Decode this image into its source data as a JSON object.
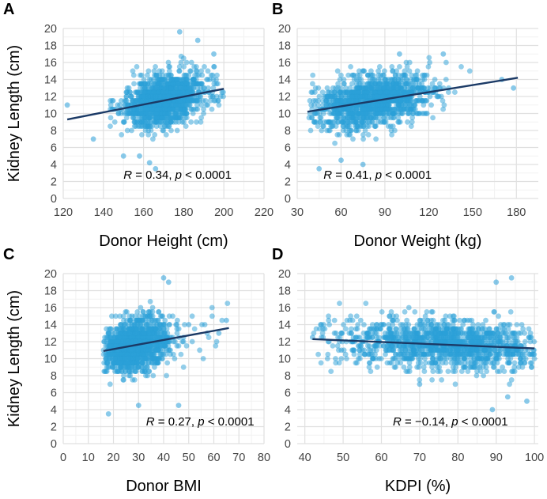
{
  "colors": {
    "point": "#2a9fd8",
    "fit_line": "#1b3a66",
    "grid_major": "#e0e0e0",
    "grid_minor": "#f2f2f2",
    "panel_bg": "#ffffff"
  },
  "chart_data": [
    {
      "id": "A",
      "type": "scatter",
      "panel_label": "A",
      "xlabel": "Donor Height (cm)",
      "ylabel": "Kidney Length (cm)",
      "xlim": [
        120,
        220
      ],
      "ylim": [
        0,
        20
      ],
      "xticks": [
        120,
        140,
        160,
        180,
        200,
        220
      ],
      "xtick_labels": [
        "120",
        "140",
        "160",
        "180",
        "200",
        "220"
      ],
      "yticks": [
        0,
        2,
        4,
        6,
        8,
        10,
        12,
        14,
        16,
        18,
        20
      ],
      "ytick_labels": [
        "0",
        "2",
        "4",
        "6",
        "8",
        "10",
        "12",
        "14",
        "16",
        "18",
        "20"
      ],
      "x_cloud": {
        "min": 140,
        "max": 200,
        "mean": 170,
        "sd": 10
      },
      "fit_line": {
        "x": [
          122,
          200
        ],
        "y": [
          9.3,
          12.9
        ]
      },
      "annotation": {
        "r_symbol": "R",
        "r_text": " = 0.34, ",
        "p_symbol": "p",
        "p_text": " < 0.0001",
        "x": 150,
        "y": 2.8
      },
      "outliers": [
        [
          122,
          11.0
        ],
        [
          178,
          19.6
        ],
        [
          187,
          18.6
        ],
        [
          158,
          5.0
        ],
        [
          163,
          4.2
        ],
        [
          166,
          3.5
        ],
        [
          150,
          5.0
        ],
        [
          135,
          7.0
        ],
        [
          195,
          17.0
        ]
      ]
    },
    {
      "id": "B",
      "type": "scatter",
      "panel_label": "B",
      "xlabel": "Donor Weight (kg)",
      "ylabel": "",
      "xlim": [
        30,
        195
      ],
      "ylim": [
        0,
        20
      ],
      "xticks": [
        30,
        60,
        90,
        120,
        150,
        180
      ],
      "xtick_labels": [
        "30",
        "60",
        "90",
        "120",
        "150",
        "180"
      ],
      "yticks": [
        0,
        2,
        4,
        6,
        8,
        10,
        12,
        14,
        16,
        18,
        20
      ],
      "ytick_labels": [
        "0",
        "2",
        "4",
        "6",
        "8",
        "10",
        "12",
        "14",
        "16",
        "18",
        "20"
      ],
      "x_cloud": {
        "min": 38,
        "max": 165,
        "mean": 82,
        "sd": 20
      },
      "fit_line": {
        "x": [
          37,
          181
        ],
        "y": [
          10.2,
          14.2
        ]
      },
      "annotation": {
        "r_symbol": "R",
        "r_text": " = 0.41, ",
        "p_symbol": "p",
        "p_text": " < 0.0001",
        "x": 48,
        "y": 2.8
      },
      "outliers": [
        [
          45,
          3.5
        ],
        [
          178,
          13.0
        ],
        [
          170,
          14.0
        ],
        [
          60,
          4.5
        ],
        [
          75,
          4.0
        ],
        [
          130,
          17.0
        ],
        [
          100,
          17.0
        ]
      ]
    },
    {
      "id": "C",
      "type": "scatter",
      "panel_label": "C",
      "xlabel": "Donor BMI",
      "ylabel": "Kidney Length (cm)",
      "xlim": [
        0,
        80
      ],
      "ylim": [
        0,
        20
      ],
      "xticks": [
        0,
        10,
        20,
        30,
        40,
        50,
        60,
        70,
        80
      ],
      "xtick_labels": [
        "0",
        "10",
        "20",
        "30",
        "40",
        "50",
        "60",
        "70",
        "80"
      ],
      "yticks": [
        0,
        2,
        4,
        6,
        8,
        10,
        12,
        14,
        16,
        18,
        20
      ],
      "ytick_labels": [
        "0",
        "2",
        "4",
        "6",
        "8",
        "10",
        "12",
        "14",
        "16",
        "18",
        "20"
      ],
      "x_cloud": {
        "min": 16,
        "max": 66,
        "mean": 29,
        "sd": 6.5
      },
      "fit_line": {
        "x": [
          16,
          66
        ],
        "y": [
          10.9,
          13.6
        ]
      },
      "annotation": {
        "r_symbol": "R",
        "r_text": " = 0.27, ",
        "p_symbol": "p",
        "p_text": " < 0.0001",
        "x": 33,
        "y": 2.6
      },
      "outliers": [
        [
          40,
          19.5
        ],
        [
          42,
          19.0
        ],
        [
          65,
          14.5
        ],
        [
          62,
          13.0
        ],
        [
          46,
          4.5
        ],
        [
          18,
          3.5
        ],
        [
          30,
          4.5
        ],
        [
          50,
          14.0
        ]
      ]
    },
    {
      "id": "D",
      "type": "scatter",
      "panel_label": "D",
      "xlabel": "KDPI (%)",
      "ylabel": "",
      "xlim": [
        38,
        101
      ],
      "ylim": [
        0,
        20
      ],
      "xticks": [
        40,
        50,
        60,
        70,
        80,
        90,
        100
      ],
      "xtick_labels": [
        "40",
        "50",
        "60",
        "70",
        "80",
        "90",
        "100"
      ],
      "yticks": [
        0,
        2,
        4,
        6,
        8,
        10,
        12,
        14,
        16,
        18,
        20
      ],
      "ytick_labels": [
        "0",
        "2",
        "4",
        "6",
        "8",
        "10",
        "12",
        "14",
        "16",
        "18",
        "20"
      ],
      "x_cloud": {
        "min": 42,
        "max": 100,
        "mean": 78,
        "sd": 14
      },
      "fit_line": {
        "x": [
          42,
          100
        ],
        "y": [
          12.3,
          11.2
        ]
      },
      "annotation": {
        "r_symbol": "R",
        "r_text": " = −0.14, ",
        "p_symbol": "p",
        "p_text": " < 0.0001",
        "x": 63,
        "y": 2.6
      },
      "outliers": [
        [
          42,
          12.5
        ],
        [
          94,
          19.5
        ],
        [
          90,
          19.0
        ],
        [
          98,
          5.0
        ],
        [
          89,
          4.0
        ],
        [
          70,
          7.0
        ],
        [
          93,
          5.5
        ]
      ]
    }
  ]
}
